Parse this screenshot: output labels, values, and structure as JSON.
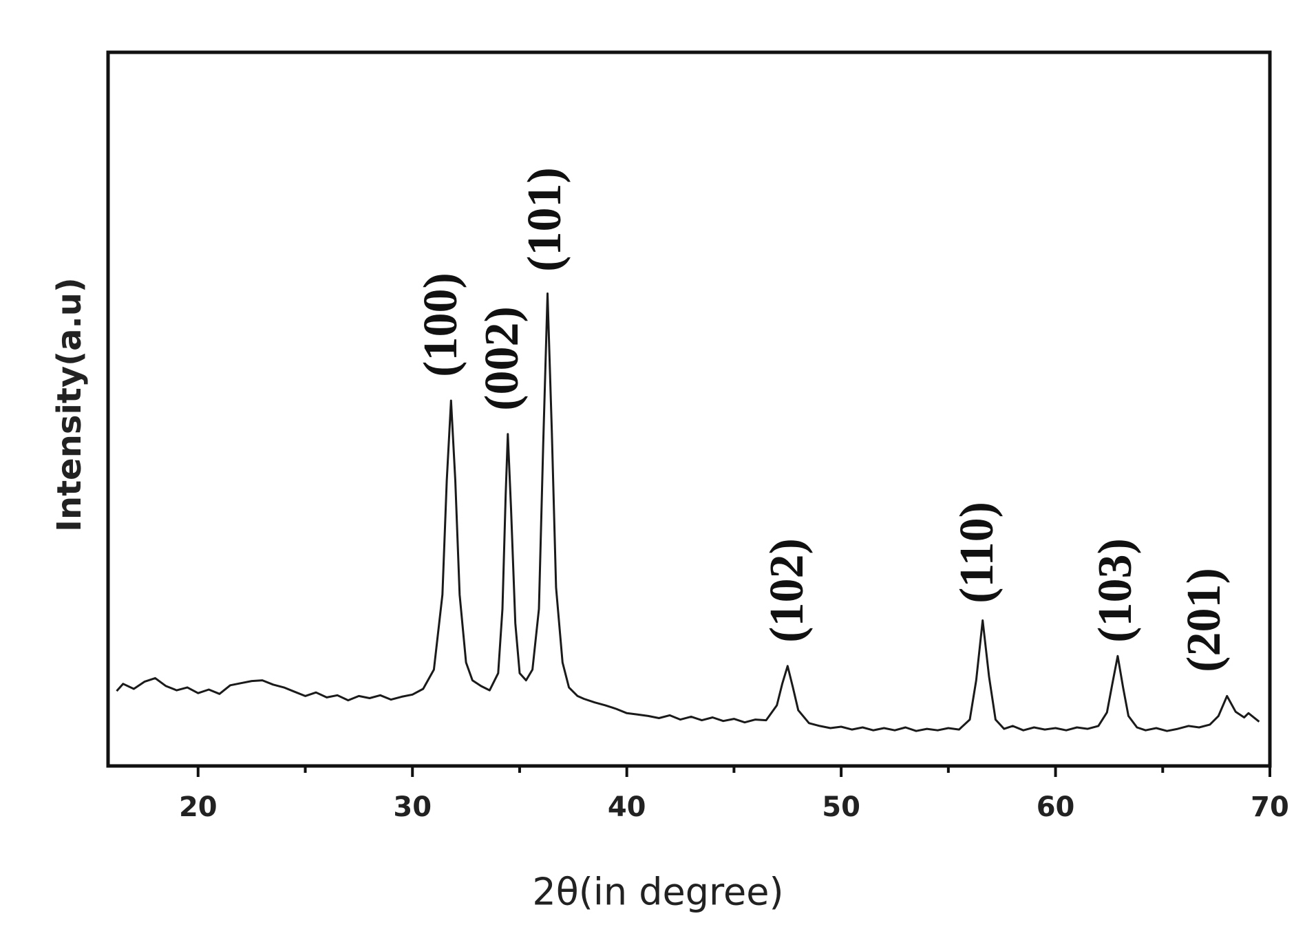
{
  "chart_data": {
    "type": "line",
    "xlabel": "2θ(in degree)",
    "ylabel": "Intensity(a.u)",
    "color": "#1a1a1a",
    "xlim": [
      15.8,
      70
    ],
    "ylim": [
      0,
      100
    ],
    "xticks": [
      20,
      30,
      40,
      50,
      60,
      70
    ],
    "xminorticks": [
      25,
      35,
      45,
      55,
      65
    ],
    "annotations": [
      "(100)",
      "(002)",
      "(101)",
      "(102)",
      "(110)",
      "(103)",
      "(201)"
    ],
    "x": [
      16.2,
      16.5,
      17,
      17.5,
      18,
      18.5,
      19,
      19.5,
      20,
      20.5,
      21,
      21.5,
      22,
      22.5,
      23,
      23.5,
      24,
      24.5,
      25,
      25.5,
      26,
      26.5,
      27,
      27.5,
      28,
      28.5,
      29,
      29.5,
      30,
      30.5,
      31,
      31.4,
      31.6,
      31.8,
      32.0,
      32.2,
      32.5,
      32.8,
      33.2,
      33.6,
      34.0,
      34.2,
      34.35,
      34.45,
      34.6,
      34.8,
      35.0,
      35.3,
      35.6,
      35.9,
      36.1,
      36.3,
      36.5,
      36.7,
      37.0,
      37.3,
      37.7,
      38,
      38.5,
      39,
      39.5,
      40,
      40.5,
      41,
      41.5,
      42,
      42.5,
      43,
      43.5,
      44,
      44.5,
      45,
      45.5,
      46,
      46.5,
      47.0,
      47.25,
      47.5,
      47.75,
      48.0,
      48.5,
      49,
      49.5,
      50,
      50.5,
      51,
      51.5,
      52,
      52.5,
      53,
      53.5,
      54,
      54.5,
      55,
      55.5,
      56.0,
      56.3,
      56.6,
      56.9,
      57.2,
      57.6,
      58,
      58.5,
      59,
      59.5,
      60,
      60.5,
      61,
      61.5,
      62,
      62.4,
      62.65,
      62.9,
      63.15,
      63.4,
      63.8,
      64.2,
      64.7,
      65.2,
      65.7,
      66.2,
      66.7,
      67.2,
      67.6,
      68.0,
      68.4,
      68.8,
      69.0,
      69.5
    ],
    "values": [
      10.5,
      11.5,
      10.8,
      11.8,
      12.3,
      11.2,
      10.6,
      11.0,
      10.2,
      10.7,
      10.1,
      11.3,
      11.6,
      11.9,
      12.0,
      11.4,
      11.0,
      10.4,
      9.8,
      10.3,
      9.6,
      9.9,
      9.2,
      9.8,
      9.5,
      9.9,
      9.3,
      9.7,
      10.0,
      10.8,
      13.5,
      24,
      40,
      51.2,
      40,
      24,
      14.5,
      12,
      11.2,
      10.6,
      13,
      22,
      38,
      46.5,
      36,
      20,
      13,
      12,
      13.5,
      22,
      45,
      66.2,
      47,
      25,
      14.5,
      11.0,
      9.8,
      9.4,
      8.9,
      8.5,
      8.0,
      7.4,
      7.2,
      7.0,
      6.7,
      7.1,
      6.5,
      6.9,
      6.4,
      6.8,
      6.3,
      6.6,
      6.1,
      6.5,
      6.4,
      8.5,
      11.5,
      14.0,
      11.0,
      7.8,
      6.0,
      5.6,
      5.3,
      5.5,
      5.1,
      5.4,
      5.0,
      5.3,
      5.0,
      5.4,
      4.9,
      5.2,
      5.0,
      5.3,
      5.1,
      6.5,
      12,
      20.4,
      12.5,
      6.5,
      5.2,
      5.6,
      5.0,
      5.4,
      5.1,
      5.3,
      5.0,
      5.4,
      5.2,
      5.6,
      7.5,
      11.5,
      15.4,
      11,
      7,
      5.4,
      5.0,
      5.3,
      4.9,
      5.2,
      5.6,
      5.4,
      5.8,
      7.0,
      9.8,
      7.6,
      6.8,
      7.4,
      6.2
    ]
  }
}
